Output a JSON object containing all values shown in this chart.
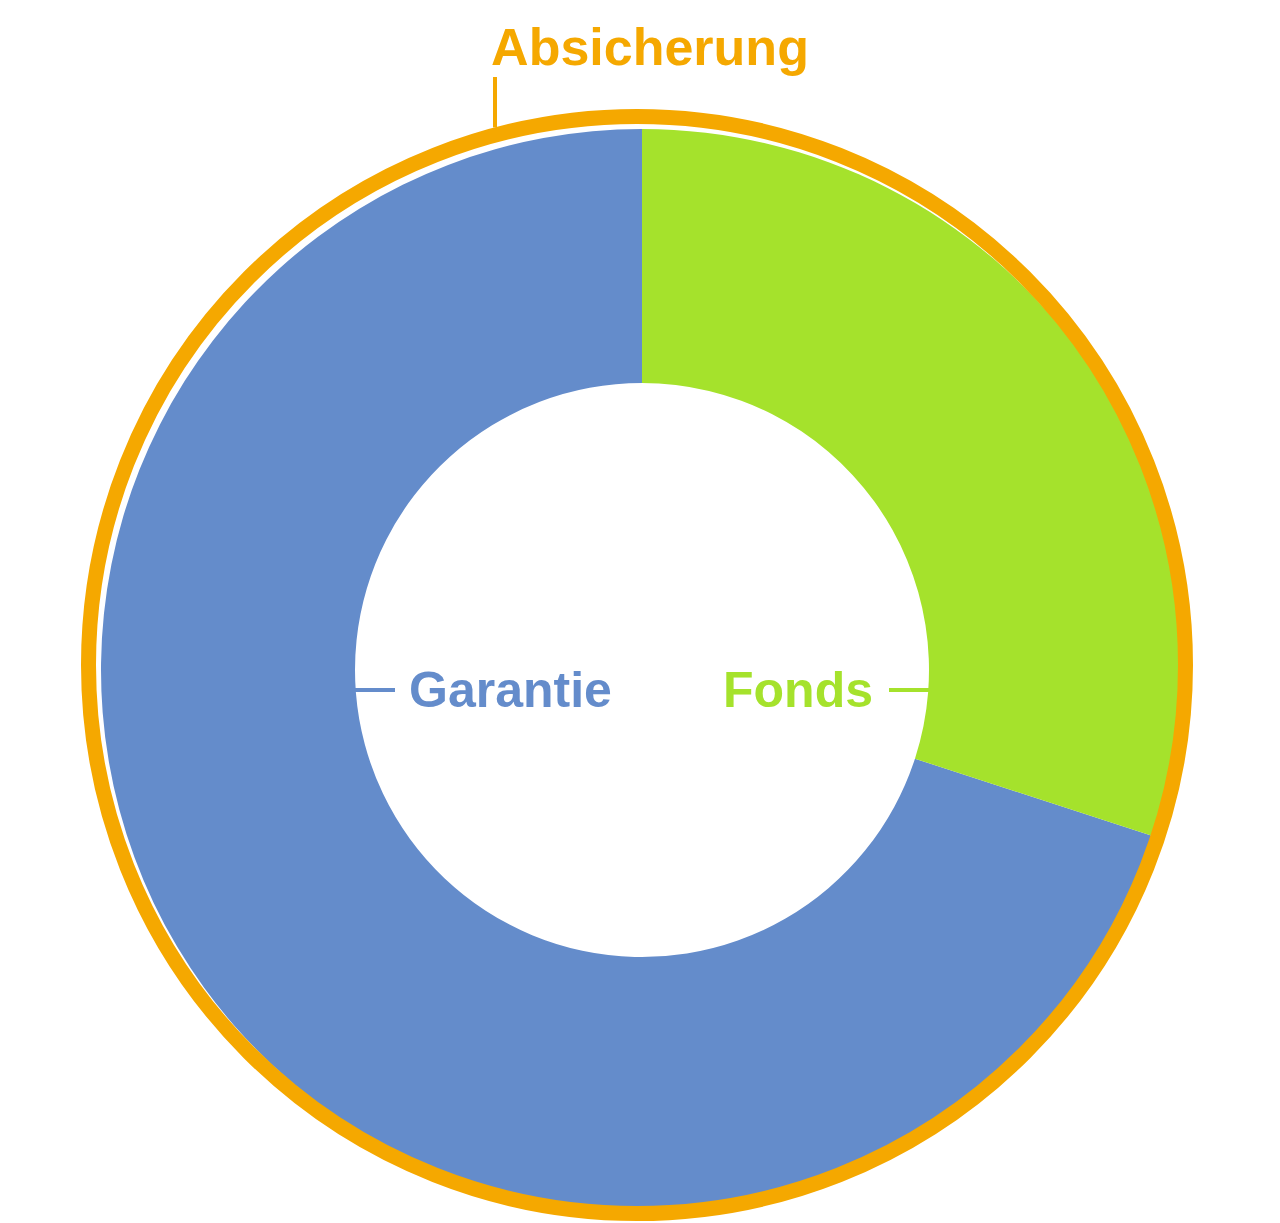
{
  "chart_data": {
    "type": "donut",
    "categories": [
      "Garantie",
      "Fonds"
    ],
    "values": [
      70,
      30
    ],
    "colors": [
      "#648ccb",
      "#a5e22c"
    ],
    "annotations": [
      "Absicherung"
    ]
  }
}
